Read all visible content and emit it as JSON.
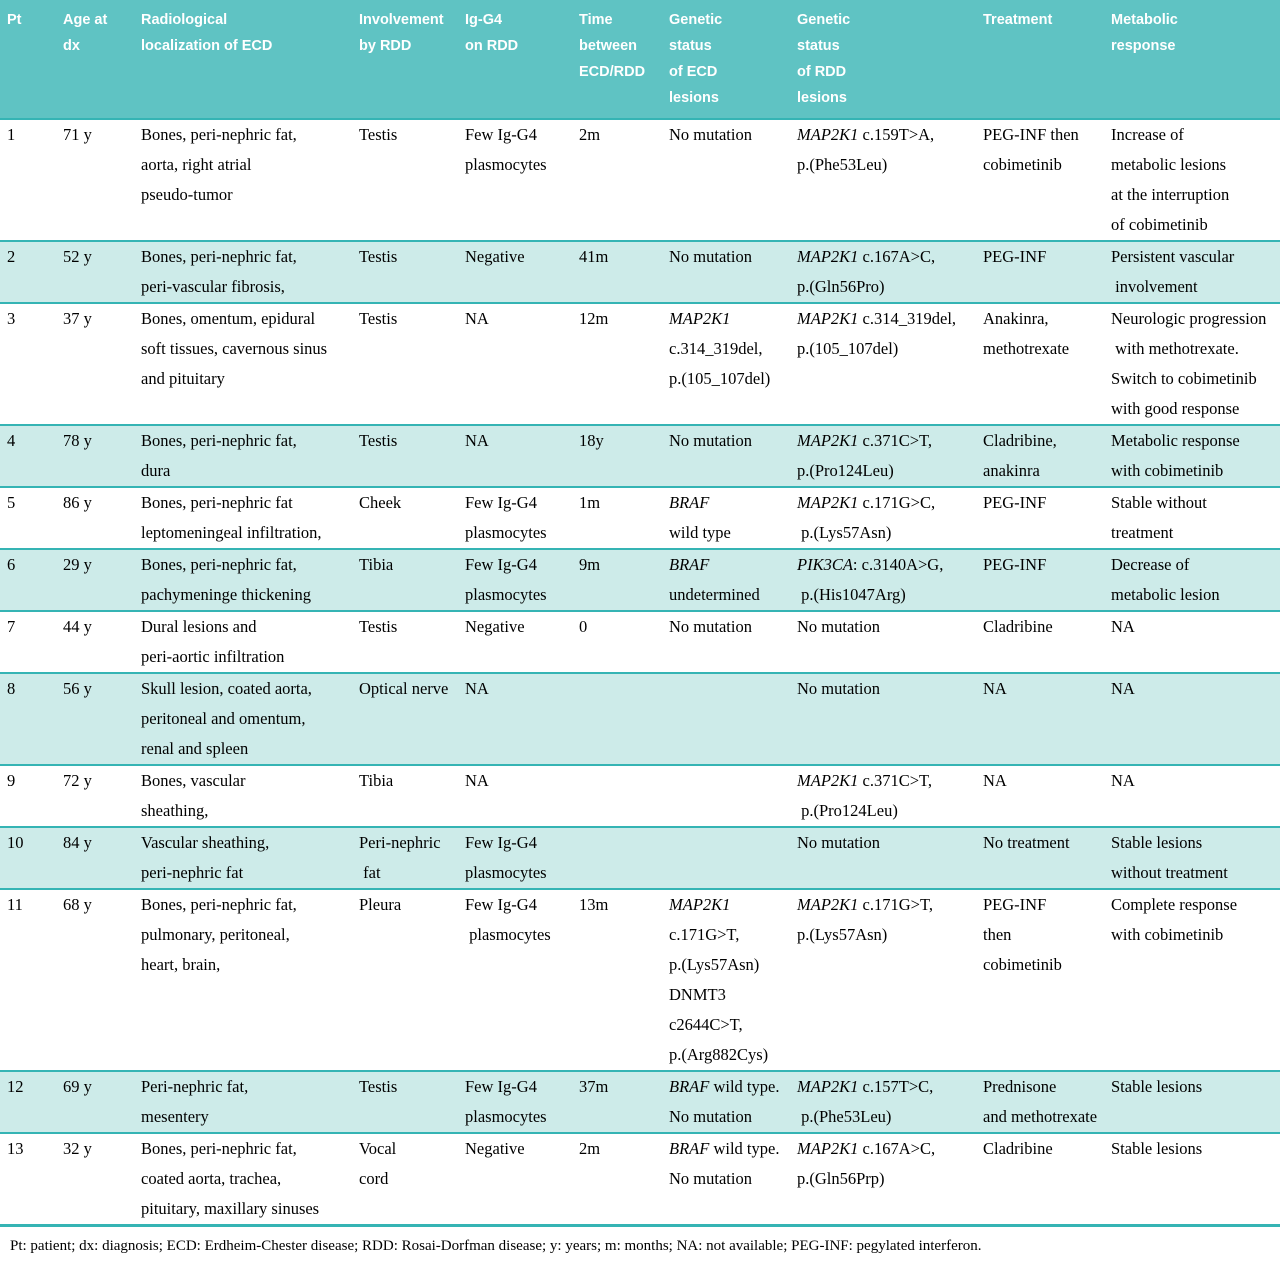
{
  "colors": {
    "header_bg": "#5fc3c3",
    "header_text": "#ffffff",
    "row_alt_bg": "#cdebe9",
    "divider": "#35b4b4",
    "body_text": "#000000",
    "page_bg": "#ffffff"
  },
  "table": {
    "columns": [
      {
        "id": "pt",
        "label": [
          "Pt"
        ]
      },
      {
        "id": "age-at-dx",
        "label": [
          "Age at",
          "dx"
        ]
      },
      {
        "id": "radiological-localization",
        "label": [
          "Radiological",
          "localization of ECD"
        ]
      },
      {
        "id": "involvement-by-rdd",
        "label": [
          "Involvement",
          "by RDD"
        ]
      },
      {
        "id": "igg4-on-rdd",
        "label": [
          "Ig-G4",
          "on RDD"
        ]
      },
      {
        "id": "time-between",
        "label": [
          "Time",
          "between",
          "ECD/RDD"
        ]
      },
      {
        "id": "genetic-status-ecd",
        "label": [
          "Genetic",
          "status",
          "of ECD",
          "lesions"
        ]
      },
      {
        "id": "genetic-status-rdd",
        "label": [
          "Genetic",
          "status",
          "of RDD",
          "lesions"
        ]
      },
      {
        "id": "treatment",
        "label": [
          "Treatment"
        ]
      },
      {
        "id": "metabolic-response",
        "label": [
          "Metabolic",
          "response"
        ]
      }
    ],
    "rows": [
      [
        [
          "1"
        ],
        [
          "71 y"
        ],
        [
          "Bones, peri-nephric fat,",
          "aorta, right atrial",
          "pseudo-tumor"
        ],
        [
          "Testis"
        ],
        [
          "Few Ig-G4",
          "plasmocytes"
        ],
        [
          "2m"
        ],
        [
          "No mutation"
        ],
        [
          "*MAP2K1* c.159T>A,",
          "p.(Phe53Leu)"
        ],
        [
          "PEG-INF then",
          "cobimetinib"
        ],
        [
          "Increase of",
          "metabolic lesions",
          "at the interruption",
          "of cobimetinib"
        ]
      ],
      [
        [
          "2"
        ],
        [
          "52 y"
        ],
        [
          "Bones, peri-nephric fat,",
          "peri-vascular fibrosis,"
        ],
        [
          "Testis"
        ],
        [
          "Negative"
        ],
        [
          "41m"
        ],
        [
          "No mutation"
        ],
        [
          "*MAP2K1* c.167A>C,",
          "p.(Gln56Pro)"
        ],
        [
          "PEG-INF"
        ],
        [
          "Persistent vascular",
          " involvement"
        ]
      ],
      [
        [
          "3"
        ],
        [
          "37 y"
        ],
        [
          "Bones, omentum, epidural",
          "soft tissues, cavernous sinus",
          "and pituitary"
        ],
        [
          "Testis"
        ],
        [
          "NA"
        ],
        [
          "12m"
        ],
        [
          "*MAP2K1*",
          "c.314_319del,",
          "p.(105_107del)"
        ],
        [
          "*MAP2K1* c.314_319del,",
          "p.(105_107del)"
        ],
        [
          "Anakinra,",
          "methotrexate"
        ],
        [
          "Neurologic progression",
          " with methotrexate.",
          "Switch to cobimetinib",
          "with good response"
        ]
      ],
      [
        [
          "4"
        ],
        [
          "78 y"
        ],
        [
          "Bones, peri-nephric fat,",
          "dura"
        ],
        [
          "Testis"
        ],
        [
          "NA"
        ],
        [
          "18y"
        ],
        [
          "No mutation"
        ],
        [
          "*MAP2K1* c.371C>T,",
          "p.(Pro124Leu)"
        ],
        [
          "Cladribine,",
          "anakinra"
        ],
        [
          "Metabolic response",
          "with cobimetinib"
        ]
      ],
      [
        [
          "5"
        ],
        [
          "86 y"
        ],
        [
          "Bones, peri-nephric fat",
          "leptomeningeal infiltration,"
        ],
        [
          "Cheek"
        ],
        [
          "Few Ig-G4",
          "plasmocytes"
        ],
        [
          "1m"
        ],
        [
          "*BRAF*",
          "wild type"
        ],
        [
          "*MAP2K1* c.171G>C,",
          " p.(Lys57Asn)"
        ],
        [
          "PEG-INF"
        ],
        [
          "Stable without",
          "treatment"
        ]
      ],
      [
        [
          "6"
        ],
        [
          "29 y"
        ],
        [
          "Bones, peri-nephric fat,",
          "pachymeninge thickening"
        ],
        [
          "Tibia"
        ],
        [
          "Few Ig-G4",
          "plasmocytes"
        ],
        [
          "9m"
        ],
        [
          "*BRAF*",
          "undetermined"
        ],
        [
          "*PIK3CA*: c.3140A>G,",
          " p.(His1047Arg)"
        ],
        [
          "PEG-INF"
        ],
        [
          "Decrease of",
          "metabolic lesion"
        ]
      ],
      [
        [
          "7"
        ],
        [
          "44 y"
        ],
        [
          "Dural lesions and",
          "peri-aortic infiltration"
        ],
        [
          "Testis"
        ],
        [
          "Negative"
        ],
        [
          "0"
        ],
        [
          "No mutation"
        ],
        [
          "No mutation"
        ],
        [
          "Cladribine"
        ],
        [
          "NA"
        ]
      ],
      [
        [
          "8"
        ],
        [
          "56 y"
        ],
        [
          "Skull lesion, coated aorta,",
          "peritoneal and omentum,",
          "renal and spleen"
        ],
        [
          "Optical nerve"
        ],
        [
          "NA"
        ],
        [],
        [],
        [
          "No mutation"
        ],
        [
          "NA"
        ],
        [
          "NA"
        ]
      ],
      [
        [
          "9"
        ],
        [
          "72 y"
        ],
        [
          "Bones, vascular",
          "sheathing,"
        ],
        [
          "Tibia"
        ],
        [
          "NA"
        ],
        [],
        [],
        [
          "*MAP2K1* c.371C>T,",
          " p.(Pro124Leu)"
        ],
        [
          "NA"
        ],
        [
          "NA"
        ]
      ],
      [
        [
          "10"
        ],
        [
          "84 y"
        ],
        [
          "Vascular sheathing,",
          "peri-nephric fat"
        ],
        [
          "Peri-nephric",
          " fat"
        ],
        [
          "Few Ig-G4",
          "plasmocytes"
        ],
        [],
        [],
        [
          "No mutation"
        ],
        [
          "No treatment"
        ],
        [
          "Stable lesions",
          "without treatment"
        ]
      ],
      [
        [
          "11"
        ],
        [
          "68 y"
        ],
        [
          "Bones, peri-nephric fat,",
          "pulmonary, peritoneal,",
          "heart, brain,"
        ],
        [
          "Pleura"
        ],
        [
          "Few Ig-G4",
          " plasmocytes"
        ],
        [
          "13m"
        ],
        [
          "*MAP2K1* c.171G>T,",
          "p.(Lys57Asn)",
          "DNMT3 c2644C>T,",
          "p.(Arg882Cys)"
        ],
        [
          "*MAP2K1* c.171G>T,",
          "p.(Lys57Asn)"
        ],
        [
          "PEG-INF",
          "then",
          "cobimetinib"
        ],
        [
          "Complete response",
          "with cobimetinib"
        ]
      ],
      [
        [
          "12"
        ],
        [
          "69 y"
        ],
        [
          "Peri-nephric fat,",
          "mesentery"
        ],
        [
          "Testis"
        ],
        [
          "Few Ig-G4",
          "plasmocytes"
        ],
        [
          "37m"
        ],
        [
          "*BRAF* wild type.",
          "No mutation"
        ],
        [
          "*MAP2K1* c.157T>C,",
          " p.(Phe53Leu)"
        ],
        [
          "Prednisone",
          "and methotrexate"
        ],
        [
          "Stable lesions"
        ]
      ],
      [
        [
          "13"
        ],
        [
          "32 y"
        ],
        [
          "Bones, peri-nephric fat,",
          "coated aorta, trachea,",
          "pituitary, maxillary sinuses"
        ],
        [
          "Vocal",
          "cord"
        ],
        [
          "Negative"
        ],
        [
          "2m"
        ],
        [
          "*BRAF* wild type.",
          "No mutation"
        ],
        [
          "*MAP2K1* c.167A>C,",
          "p.(Gln56Prp)"
        ],
        [
          "Cladribine"
        ],
        [
          "Stable lesions"
        ]
      ]
    ]
  },
  "footnote": "Pt: patient; dx: diagnosis; ECD: Erdheim-Chester disease; RDD: Rosai-Dorfman disease; y: years; m: months; NA: not available; PEG-INF: pegylated interferon."
}
